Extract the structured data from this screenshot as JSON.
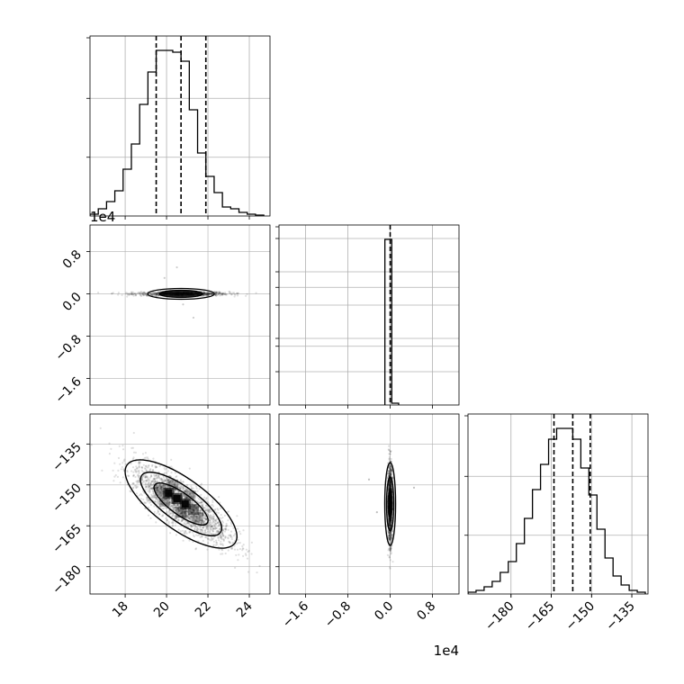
{
  "chart_data": {
    "type": "corner",
    "parameters": [
      "",
      "",
      ""
    ],
    "offset_labels": {
      "p1_y": "1e4",
      "p1_x": "1e4"
    },
    "grid": true,
    "panels": {
      "hist_p0": {
        "type": "histogram",
        "xlim": [
          16.3,
          25.0
        ],
        "bin_edges": [
          16.3,
          16.7,
          17.1,
          17.5,
          17.9,
          18.3,
          18.7,
          19.1,
          19.5,
          19.9,
          20.3,
          20.7,
          21.1,
          21.5,
          21.9,
          22.3,
          22.7,
          23.1,
          23.5,
          23.9,
          24.3,
          24.7
        ],
        "counts": [
          0.01,
          0.04,
          0.08,
          0.14,
          0.26,
          0.4,
          0.62,
          0.8,
          0.92,
          0.92,
          0.91,
          0.86,
          0.59,
          0.35,
          0.22,
          0.13,
          0.05,
          0.04,
          0.02,
          0.01,
          0.005
        ],
        "quantiles": [
          19.5,
          20.7,
          21.9
        ],
        "x_ticks": [
          18,
          20,
          22,
          24
        ]
      },
      "hist_p1": {
        "type": "histogram",
        "xlim": [
          -2.1,
          1.3
        ],
        "bin_edges": [
          -0.1,
          0.03,
          0.16
        ],
        "counts": [
          0.92,
          0.01
        ],
        "quantiles": [
          0.0
        ],
        "x_ticks": [
          -1.6,
          -0.8,
          0.0,
          0.8
        ]
      },
      "hist_p2": {
        "type": "histogram",
        "xlim": [
          -196,
          -129
        ],
        "bin_edges": [
          -196,
          -193,
          -190,
          -187,
          -184,
          -181,
          -178,
          -175,
          -172,
          -169,
          -166,
          -163,
          -160,
          -157,
          -154,
          -151,
          -148,
          -145,
          -142,
          -139,
          -136,
          -133,
          -130
        ],
        "counts": [
          0.01,
          0.02,
          0.04,
          0.07,
          0.12,
          0.18,
          0.28,
          0.42,
          0.58,
          0.72,
          0.86,
          0.92,
          0.92,
          0.86,
          0.7,
          0.55,
          0.36,
          0.2,
          0.1,
          0.05,
          0.02,
          0.01
        ],
        "quantiles": [
          -164,
          -157,
          -150.5
        ],
        "x_ticks": [
          -180,
          -165,
          -150,
          -135
        ]
      },
      "scatter_p0_p1": {
        "type": "scatter",
        "xlim": [
          16.3,
          25.0
        ],
        "ylim": [
          -2.1,
          1.3
        ],
        "x_center": 20.7,
        "x_sd": 1.15,
        "y_center": 0.0,
        "y_sd": 0.02,
        "y_ticks": [
          0.8,
          0.0,
          -0.8,
          -1.6
        ]
      },
      "scatter_p0_p2": {
        "type": "scatter",
        "xlim": [
          16.3,
          25.0
        ],
        "ylim": [
          -190,
          -124
        ],
        "x_center": 20.7,
        "x_sd": 1.15,
        "y_center": -157,
        "y_sd": 7.0,
        "correlation": -0.8,
        "x_ticks": [
          18,
          20,
          22,
          24
        ],
        "y_ticks": [
          -135,
          -150,
          -165,
          -180
        ]
      },
      "scatter_p1_p2": {
        "type": "scatter",
        "xlim": [
          -2.1,
          1.3
        ],
        "ylim": [
          -190,
          -124
        ],
        "x_center": 0.0,
        "x_sd": 0.02,
        "y_center": -157,
        "y_sd": 7.0,
        "x_ticks": [
          -1.6,
          -0.8,
          0.0,
          0.8
        ]
      }
    }
  }
}
